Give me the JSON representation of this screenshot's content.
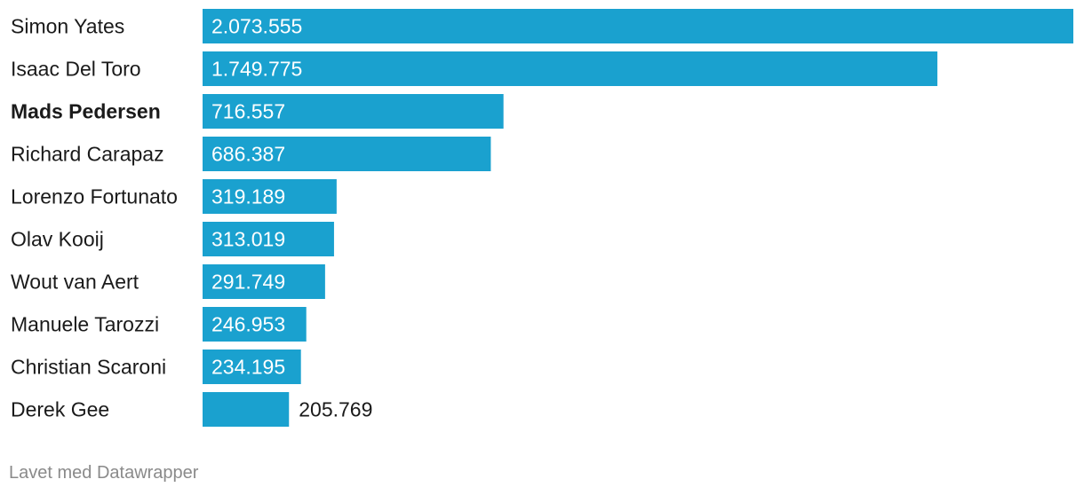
{
  "chart_data": {
    "type": "bar",
    "orientation": "horizontal",
    "categories": [
      "Simon Yates",
      "Isaac Del Toro",
      "Mads Pedersen",
      "Richard Carapaz",
      "Lorenzo Fortunato",
      "Olav Kooij",
      "Wout van Aert",
      "Manuele Tarozzi",
      "Christian Scaroni",
      "Derek Gee"
    ],
    "values": [
      2073555,
      1749775,
      716557,
      686387,
      319189,
      313019,
      291749,
      246953,
      234195,
      205769
    ],
    "value_labels": [
      "2.073.555",
      "1.749.775",
      "716.557",
      "686.387",
      "319.189",
      "313.019",
      "291.749",
      "246.953",
      "234.195",
      "205.769"
    ],
    "highlighted": [
      "Mads Pedersen"
    ],
    "xlim": [
      0,
      2073555
    ],
    "grid": false,
    "bar_color": "#1aa1cf"
  },
  "footer": "Lavet med Datawrapper"
}
